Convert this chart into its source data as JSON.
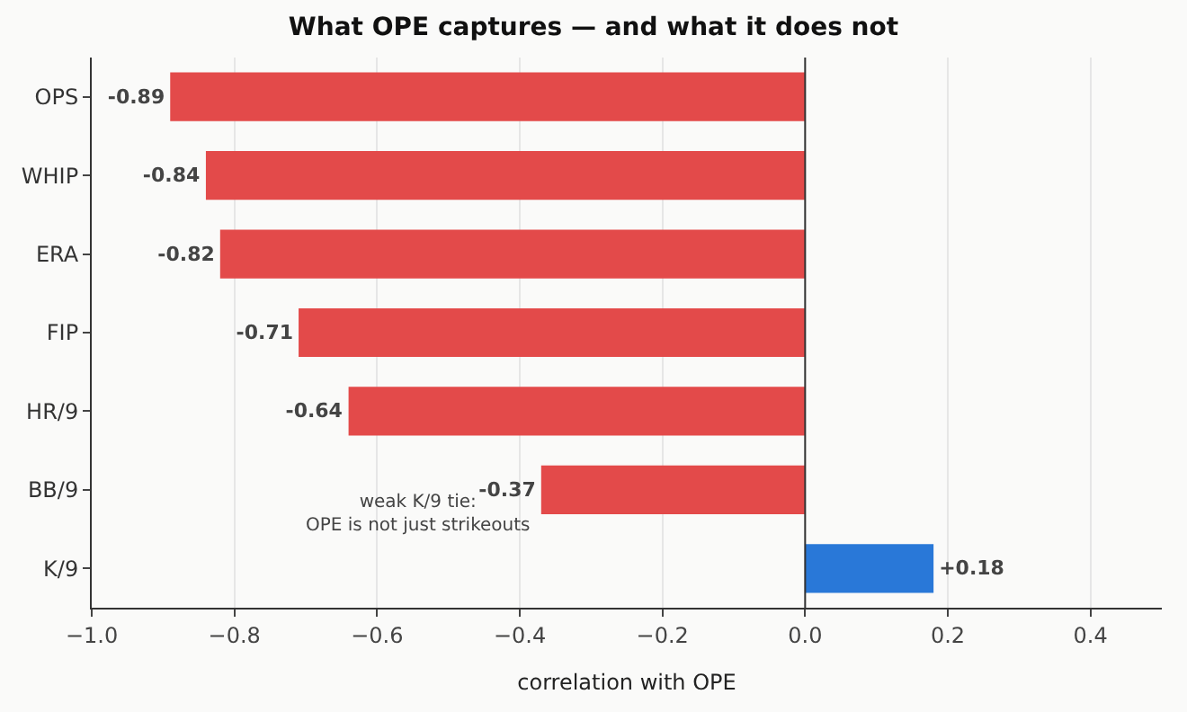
{
  "chart_data": {
    "type": "bar",
    "orientation": "horizontal",
    "title": "What OPE captures — and what it does not",
    "xlabel": "correlation with OPE",
    "categories": [
      "OPS",
      "WHIP",
      "ERA",
      "FIP",
      "HR/9",
      "BB/9",
      "K/9"
    ],
    "values": [
      -0.89,
      -0.84,
      -0.82,
      -0.71,
      -0.64,
      -0.37,
      0.18
    ],
    "colors": [
      "#e34a4a",
      "#e34a4a",
      "#e34a4a",
      "#e34a4a",
      "#e34a4a",
      "#e34a4a",
      "#2978d8"
    ],
    "value_labels": [
      "-0.89",
      "-0.84",
      "-0.82",
      "-0.71",
      "-0.64",
      "-0.37",
      "+0.18"
    ],
    "xlim": [
      -1.0,
      0.5
    ],
    "xticks": [
      {
        "value": -1.0,
        "label": "−1.0"
      },
      {
        "value": -0.8,
        "label": "−0.8"
      },
      {
        "value": -0.6,
        "label": "−0.6"
      },
      {
        "value": -0.4,
        "label": "−0.4"
      },
      {
        "value": -0.2,
        "label": "−0.2"
      },
      {
        "value": 0.0,
        "label": "0.0"
      },
      {
        "value": 0.2,
        "label": "0.2"
      },
      {
        "value": 0.4,
        "label": "0.4"
      }
    ],
    "grid": "x",
    "legend": false,
    "ref_lines": [
      {
        "axis": "x",
        "value": 0.0,
        "color": "#333333"
      }
    ],
    "annotations": [
      "weak K/9 tie:\nOPE is not just strikeouts"
    ]
  }
}
